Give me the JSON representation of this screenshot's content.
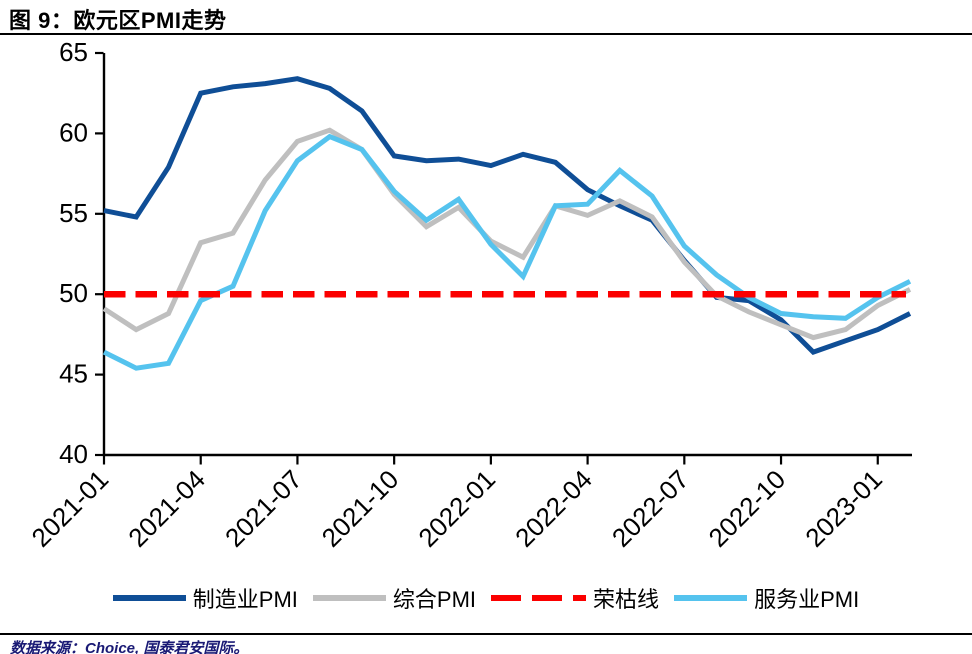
{
  "figure": {
    "title": "图 9：欧元区PMI走势",
    "source_note": "数据来源：Choice, 国泰君安国际。"
  },
  "colors": {
    "manufacturing": "#0F4E96",
    "composite": "#BFBFBF",
    "services": "#55C3EE",
    "threshold": "#FB0000",
    "axis": "#000000",
    "tick_label": "#000000"
  },
  "legend": {
    "items": [
      {
        "label": "制造业PMI",
        "color_key": "manufacturing",
        "style": "solid"
      },
      {
        "label": "综合PMI",
        "color_key": "composite",
        "style": "solid"
      },
      {
        "label": "荣枯线",
        "color_key": "threshold",
        "style": "dashed"
      },
      {
        "label": "服务业PMI",
        "color_key": "services",
        "style": "solid"
      }
    ]
  },
  "chart_data": {
    "type": "line",
    "title": "欧元区PMI走势",
    "xlabel": "",
    "ylabel": "",
    "ylim": [
      40,
      65
    ],
    "y_ticks": [
      40,
      45,
      50,
      55,
      60,
      65
    ],
    "grid": false,
    "legend_position": "bottom",
    "n_points": 26,
    "x_tick_labels": [
      "2021-01",
      "2021-04",
      "2021-07",
      "2021-10",
      "2022-01",
      "2022-04",
      "2022-07",
      "2022-10",
      "2023-01"
    ],
    "x_tick_point_indices": [
      0,
      3,
      6,
      9,
      12,
      15,
      18,
      21,
      24
    ],
    "threshold_line": {
      "name": "荣枯线",
      "value": 50,
      "style": "dashed",
      "color_key": "threshold"
    },
    "series": [
      {
        "name": "制造业PMI",
        "color_key": "manufacturing",
        "values": [
          55.2,
          54.8,
          57.9,
          62.5,
          62.9,
          63.1,
          63.4,
          62.8,
          61.4,
          58.6,
          58.3,
          58.4,
          58.0,
          58.7,
          58.2,
          56.5,
          55.5,
          54.6,
          52.1,
          49.8,
          49.6,
          48.4,
          46.4,
          47.1,
          47.8,
          48.8
        ]
      },
      {
        "name": "综合PMI",
        "color_key": "composite",
        "values": [
          49.1,
          47.8,
          48.8,
          53.2,
          53.8,
          57.1,
          59.5,
          60.2,
          59.0,
          56.2,
          54.2,
          55.4,
          53.3,
          52.3,
          55.5,
          54.9,
          55.8,
          54.8,
          52.0,
          49.9,
          48.9,
          48.1,
          47.3,
          47.8,
          49.3,
          50.3
        ]
      },
      {
        "name": "服务业PMI",
        "color_key": "services",
        "values": [
          46.4,
          45.4,
          45.7,
          49.6,
          50.5,
          55.2,
          58.3,
          59.8,
          59.0,
          56.4,
          54.6,
          55.9,
          53.1,
          51.1,
          55.5,
          55.6,
          57.7,
          56.1,
          53.0,
          51.2,
          49.8,
          48.8,
          48.6,
          48.5,
          49.8,
          50.8
        ]
      }
    ]
  }
}
